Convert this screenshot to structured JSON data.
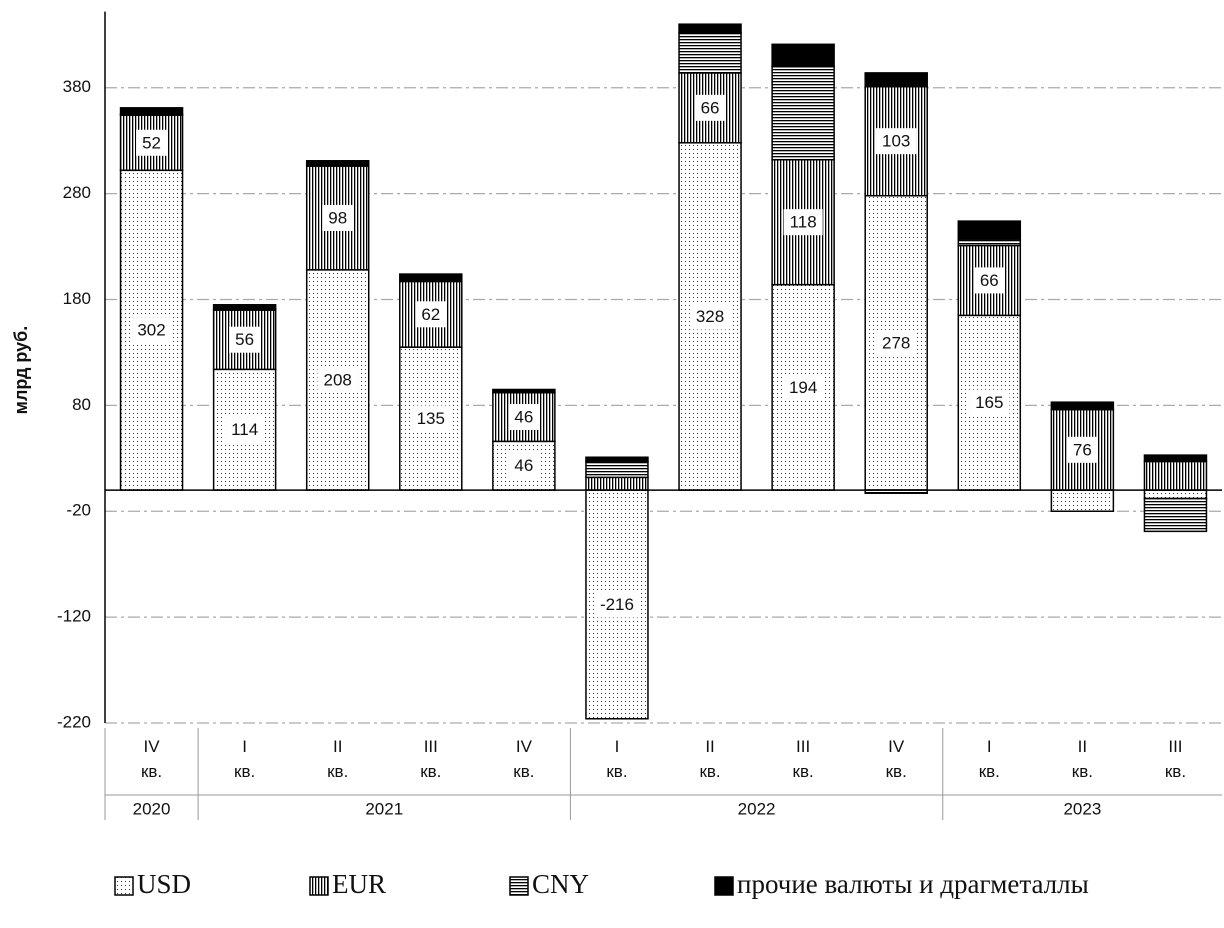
{
  "chart_data": {
    "type": "stacked_bar",
    "y_axis_label": "млрд руб.",
    "categories": [
      "IV кв.",
      "I кв.",
      "II кв.",
      "III кв.",
      "IV кв.",
      "I кв.",
      "II кв.",
      "III кв.",
      "IV кв.",
      "I кв.",
      "II кв.",
      "III кв."
    ],
    "x_groups": [
      "2020",
      "2021",
      "2021",
      "2021",
      "2021",
      "2022",
      "2022",
      "2022",
      "2022",
      "2023",
      "2023",
      "2023"
    ],
    "series": [
      {
        "name": "USD",
        "pattern": "dots",
        "color": "#000000",
        "values": [
          302,
          114,
          208,
          135,
          46,
          -216,
          328,
          194,
          278,
          165,
          -20,
          -8
        ],
        "value_labels": [
          "302",
          "114",
          "208",
          "135",
          "46",
          "-216",
          "328",
          "194",
          "278",
          "165",
          null,
          null
        ]
      },
      {
        "name": "EUR",
        "pattern": "vertical",
        "color": "#000000",
        "values": [
          52,
          56,
          98,
          62,
          46,
          12,
          66,
          118,
          103,
          66,
          76,
          27
        ],
        "value_labels": [
          "52",
          "56",
          "98",
          "62",
          "46",
          null,
          "66",
          "118",
          "103",
          "66",
          "76",
          null
        ]
      },
      {
        "name": "CNY",
        "pattern": "horizontal",
        "color": "#000000",
        "values": [
          1,
          1,
          1,
          0,
          0,
          15,
          38,
          88,
          -3,
          6,
          0,
          -31
        ]
      },
      {
        "name": "прочие валюты и драгметаллы",
        "pattern": "solid",
        "color": "#000000",
        "values": [
          6,
          4,
          4,
          7,
          3,
          4,
          8,
          21,
          13,
          17,
          7,
          6
        ]
      }
    ],
    "ylim": [
      -220,
      450
    ],
    "yticks": [
      -220,
      -120,
      -20,
      80,
      180,
      280,
      380
    ],
    "grid": true,
    "legend": "bottom"
  }
}
